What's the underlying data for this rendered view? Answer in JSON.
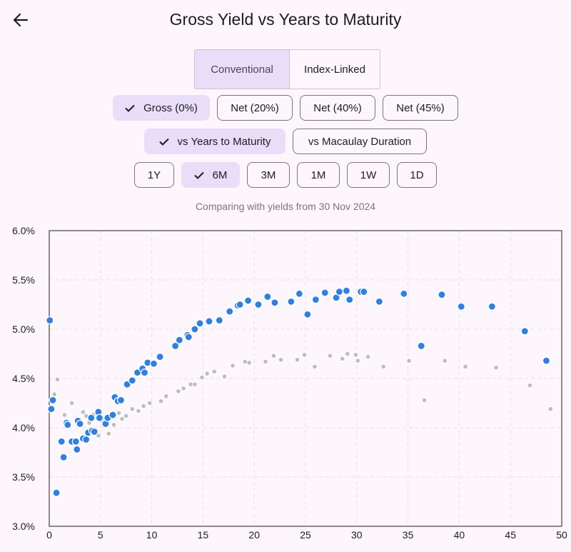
{
  "header": {
    "title": "Gross Yield vs Years to Maturity",
    "back_icon": "arrow-left-icon"
  },
  "type_toggle": {
    "options": [
      "Conventional",
      "Index-Linked"
    ],
    "selected": "Conventional"
  },
  "tax_chips": {
    "options": [
      "Gross (0%)",
      "Net (20%)",
      "Net (40%)",
      "Net (45%)"
    ],
    "selected": "Gross (0%)"
  },
  "axis_chips": {
    "options": [
      "vs Years to Maturity",
      "vs Macaulay Duration"
    ],
    "selected": "vs Years to Maturity"
  },
  "period_chips": {
    "options": [
      "1Y",
      "6M",
      "3M",
      "1M",
      "1W",
      "1D"
    ],
    "selected": "6M"
  },
  "compare_text": "Comparing with yields from 30 Nov 2024",
  "colors": {
    "current": "#2f80e1",
    "previous": "#bdbdbd",
    "accent": "#e8def8"
  },
  "chart_data": {
    "type": "scatter",
    "xlim": [
      0,
      50
    ],
    "ylim": [
      3.0,
      6.0
    ],
    "x_ticks": [
      "0",
      "5",
      "10",
      "15",
      "20",
      "25",
      "30",
      "35",
      "40",
      "45",
      "50"
    ],
    "y_ticks": [
      "3.0%",
      "3.5%",
      "4.0%",
      "4.5%",
      "5.0%",
      "5.5%",
      "6.0%"
    ],
    "grid": true,
    "series": [
      {
        "points": [
          [
            0.05,
            5.09
          ],
          [
            0.2,
            4.19
          ],
          [
            0.35,
            4.28
          ],
          [
            0.7,
            3.34
          ],
          [
            1.2,
            3.86
          ],
          [
            1.4,
            3.7
          ],
          [
            1.7,
            4.05
          ],
          [
            1.8,
            4.03
          ],
          [
            2.2,
            3.86
          ],
          [
            2.6,
            3.86
          ],
          [
            2.7,
            3.78
          ],
          [
            2.8,
            4.07
          ],
          [
            3.0,
            4.04
          ],
          [
            3.3,
            3.89
          ],
          [
            3.6,
            3.88
          ],
          [
            3.8,
            3.95
          ],
          [
            4.1,
            4.1
          ],
          [
            4.2,
            3.97
          ],
          [
            4.4,
            3.96
          ],
          [
            4.8,
            4.16
          ],
          [
            4.9,
            4.1
          ],
          [
            5.5,
            4.04
          ],
          [
            5.7,
            4.1
          ],
          [
            6.2,
            4.13
          ],
          [
            6.4,
            4.31
          ],
          [
            6.7,
            4.27
          ],
          [
            7.0,
            4.28
          ],
          [
            7.6,
            4.44
          ],
          [
            8.1,
            4.48
          ],
          [
            8.6,
            4.56
          ],
          [
            9.1,
            4.6
          ],
          [
            9.3,
            4.56
          ],
          [
            9.6,
            4.66
          ],
          [
            10.2,
            4.65
          ],
          [
            10.8,
            4.72
          ],
          [
            12.3,
            4.83
          ],
          [
            12.7,
            4.89
          ],
          [
            13.5,
            4.94
          ],
          [
            13.6,
            4.92
          ],
          [
            14.2,
            5.0
          ],
          [
            14.7,
            5.06
          ],
          [
            15.6,
            5.08
          ],
          [
            16.6,
            5.09
          ],
          [
            17.6,
            5.18
          ],
          [
            18.4,
            5.24
          ],
          [
            18.6,
            5.25
          ],
          [
            19.4,
            5.29
          ],
          [
            20.4,
            5.25
          ],
          [
            21.3,
            5.33
          ],
          [
            22.0,
            5.27
          ],
          [
            23.6,
            5.28
          ],
          [
            24.4,
            5.36
          ],
          [
            25.2,
            5.15
          ],
          [
            26.0,
            5.3
          ],
          [
            26.9,
            5.37
          ],
          [
            28.0,
            5.32
          ],
          [
            28.3,
            5.38
          ],
          [
            29.0,
            5.39
          ],
          [
            29.3,
            5.3
          ],
          [
            30.4,
            5.38
          ],
          [
            30.7,
            5.38
          ],
          [
            32.2,
            5.28
          ],
          [
            34.6,
            5.36
          ],
          [
            36.3,
            4.83
          ],
          [
            38.3,
            5.35
          ],
          [
            40.2,
            5.23
          ],
          [
            43.2,
            5.23
          ],
          [
            46.4,
            4.98
          ],
          [
            48.5,
            4.68
          ]
        ]
      },
      {
        "points": [
          [
            0.05,
            4.2
          ],
          [
            0.5,
            4.34
          ],
          [
            0.8,
            4.49
          ],
          [
            1.2,
            3.85
          ],
          [
            1.5,
            4.13
          ],
          [
            2.2,
            4.25
          ],
          [
            2.8,
            4.05
          ],
          [
            3.3,
            4.16
          ],
          [
            3.6,
            4.12
          ],
          [
            3.9,
            4.05
          ],
          [
            4.3,
            4.13
          ],
          [
            4.8,
            3.92
          ],
          [
            5.2,
            4.07
          ],
          [
            5.8,
            3.94
          ],
          [
            6.3,
            4.03
          ],
          [
            6.8,
            4.15
          ],
          [
            7.1,
            4.09
          ],
          [
            7.5,
            4.12
          ],
          [
            8.1,
            4.19
          ],
          [
            8.7,
            4.17
          ],
          [
            9.2,
            4.22
          ],
          [
            9.8,
            4.25
          ],
          [
            10.9,
            4.27
          ],
          [
            11.4,
            4.32
          ],
          [
            12.6,
            4.37
          ],
          [
            13.1,
            4.4
          ],
          [
            13.8,
            4.44
          ],
          [
            14.2,
            4.44
          ],
          [
            14.9,
            4.51
          ],
          [
            15.4,
            4.55
          ],
          [
            16.1,
            4.57
          ],
          [
            17.1,
            4.52
          ],
          [
            17.9,
            4.63
          ],
          [
            19.1,
            4.67
          ],
          [
            19.5,
            4.66
          ],
          [
            21.1,
            4.67
          ],
          [
            21.9,
            4.73
          ],
          [
            22.6,
            4.69
          ],
          [
            24.2,
            4.69
          ],
          [
            24.9,
            4.74
          ],
          [
            25.9,
            4.62
          ],
          [
            27.4,
            4.73
          ],
          [
            28.6,
            4.7
          ],
          [
            29.1,
            4.75
          ],
          [
            29.9,
            4.74
          ],
          [
            30.1,
            4.68
          ],
          [
            31.1,
            4.72
          ],
          [
            32.6,
            4.62
          ],
          [
            35.1,
            4.68
          ],
          [
            36.6,
            4.28
          ],
          [
            38.6,
            4.68
          ],
          [
            40.6,
            4.62
          ],
          [
            43.6,
            4.61
          ],
          [
            46.9,
            4.43
          ],
          [
            48.9,
            4.19
          ]
        ]
      }
    ]
  }
}
